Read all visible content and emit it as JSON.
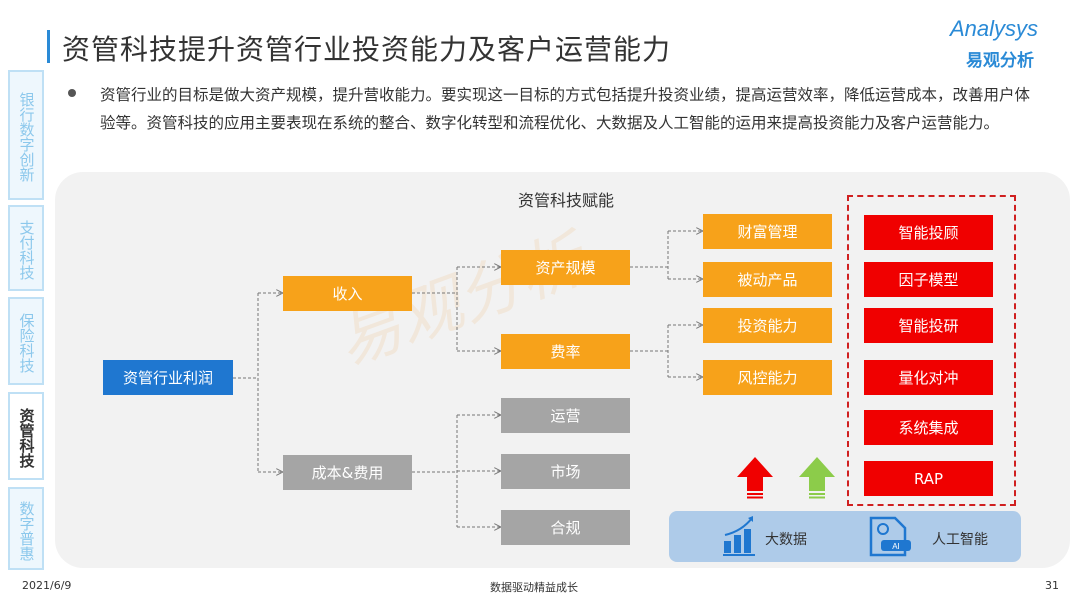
{
  "header": {
    "title": "资管科技提升资管行业投资能力及客户运营能力",
    "logo_en": "Analysys",
    "logo_cn": "易观分析"
  },
  "intro": "资管行业的目标是做大资产规模，提升营收能力。要实现这一目标的方式包括提升投资业绩，提高运营效率，降低运营成本，改善用户体验等。资管科技的应用主要表现在系统的整合、数字化转型和流程优化、大数据及人工智能的运用来提高投资能力及客户运营能力。",
  "watermark": "易观分析",
  "sidebar": {
    "tabs": [
      {
        "label": "银行数字创新",
        "active": false
      },
      {
        "label": "支付科技",
        "active": false
      },
      {
        "label": "保险科技",
        "active": false
      },
      {
        "label": "资管科技",
        "active": true
      },
      {
        "label": "数字普惠",
        "active": false
      }
    ]
  },
  "diagram": {
    "section_title": "资管科技赋能",
    "root": "资管行业利润",
    "level1": [
      "收入",
      "成本&费用"
    ],
    "income": [
      "资产规模",
      "费率"
    ],
    "cost": [
      "运营",
      "市场",
      "合规"
    ],
    "capabilities": [
      "财富管理",
      "被动产品",
      "投资能力",
      "风控能力"
    ],
    "applications": [
      "智能投顾",
      "因子模型",
      "智能投研",
      "量化对冲",
      "系统集成",
      "RAP"
    ],
    "enablers": [
      {
        "label": "大数据",
        "icon": "bar-chart-growth-icon"
      },
      {
        "label": "人工智能",
        "icon": "ai-document-icon",
        "badge": "AI"
      }
    ],
    "colors": {
      "root": "#1f77d0",
      "revenue": "#f7a21a",
      "cost": "#a5a5a5",
      "application": "#f00000",
      "arrow_red": "#f00000",
      "arrow_green": "#8ccc4a"
    }
  },
  "footer": {
    "date": "2021/6/9",
    "slogan": "数据驱动精益成长",
    "page": "31"
  }
}
